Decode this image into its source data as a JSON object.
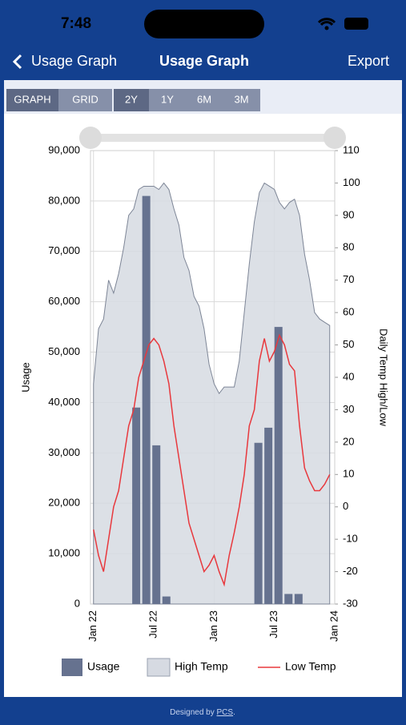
{
  "status_bar": {
    "time": "7:48"
  },
  "nav": {
    "back": "Usage Graph",
    "title": "Usage Graph",
    "action": "Export"
  },
  "toolbar": {
    "views": [
      "GRAPH",
      "GRID"
    ],
    "ranges": [
      "2Y",
      "1Y",
      "6M",
      "3M"
    ]
  },
  "chart_data": {
    "type": "combo",
    "xlabel": null,
    "ylabel": "Usage",
    "y2label": "Daily Temp High/Low",
    "xlim": [
      -0.3,
      24
    ],
    "xticks": [
      {
        "value": 0,
        "label": "Jan 22"
      },
      {
        "value": 6,
        "label": "Jul 22"
      },
      {
        "value": 12,
        "label": "Jan 23"
      },
      {
        "value": 18,
        "label": "Jul 23"
      },
      {
        "value": 24,
        "label": "Jan 24"
      }
    ],
    "ylim": [
      0,
      90000
    ],
    "yticks": [
      0,
      {
        "value": 10000,
        "label": "10,000"
      },
      {
        "value": 20000,
        "label": "20,000"
      },
      {
        "value": 30000,
        "label": "30,000"
      },
      {
        "value": 40000,
        "label": "40,000"
      },
      {
        "value": 50000,
        "label": "50,000"
      },
      {
        "value": 60000,
        "label": "60,000"
      },
      {
        "value": 70000,
        "label": "70,000"
      },
      {
        "value": 80000,
        "label": "80,000"
      },
      {
        "value": 90000,
        "label": "90,000"
      }
    ],
    "y2lim": [
      -30,
      110
    ],
    "y2ticks": [
      -30,
      -20,
      -10,
      0,
      10,
      20,
      30,
      40,
      50,
      60,
      70,
      80,
      90,
      100,
      110
    ],
    "grid": true,
    "series": [
      {
        "name": "Usage",
        "type": "bar",
        "color": "#66728f",
        "x": [
          4.25,
          5.25,
          6.25,
          7.25,
          16.4,
          17.4,
          18.4,
          19.4,
          20.4
        ],
        "values": [
          39000,
          81000,
          31500,
          1500,
          32000,
          35000,
          55000,
          2000,
          2000
        ]
      },
      {
        "name": "High Temp",
        "type": "area",
        "axis": "y2",
        "color": "#d6dae2",
        "x": [
          0,
          0.5,
          1,
          1.5,
          2,
          2.5,
          3,
          3.5,
          4,
          4.5,
          5,
          5.5,
          6,
          6.5,
          7,
          7.5,
          8,
          8.5,
          9,
          9.5,
          10,
          10.5,
          11,
          11.5,
          12,
          12.5,
          13,
          13.5,
          14,
          14.5,
          15,
          15.5,
          16,
          16.5,
          17,
          17.5,
          18,
          18.5,
          19,
          19.5,
          20,
          20.5,
          21,
          21.5,
          22,
          22.5,
          23,
          23.5
        ],
        "values": [
          38,
          55,
          58,
          70,
          66,
          72,
          80,
          90,
          92,
          98,
          99,
          99,
          99,
          98,
          100,
          98,
          92,
          87,
          77,
          73,
          65,
          62,
          55,
          44,
          38,
          35,
          37,
          37,
          37,
          45,
          60,
          75,
          88,
          97,
          100,
          99,
          98,
          94,
          92,
          94,
          95,
          90,
          78,
          70,
          60,
          58,
          57,
          56
        ]
      },
      {
        "name": "Low Temp",
        "type": "line",
        "axis": "y2",
        "color": "#e8383d",
        "x": [
          0,
          0.5,
          1,
          1.5,
          2,
          2.5,
          3,
          3.5,
          4,
          4.5,
          5,
          5.5,
          6,
          6.5,
          7,
          7.5,
          8,
          8.5,
          9,
          9.5,
          10,
          10.5,
          11,
          11.5,
          12,
          12.5,
          13,
          13.5,
          14,
          14.5,
          15,
          15.5,
          16,
          16.5,
          17,
          17.5,
          18,
          18.5,
          19,
          19.5,
          20,
          20.5,
          21,
          21.5,
          22,
          22.5,
          23,
          23.5
        ],
        "values": [
          -7,
          -15,
          -20,
          -10,
          0,
          5,
          15,
          25,
          30,
          40,
          45,
          50,
          52,
          50,
          45,
          38,
          25,
          15,
          5,
          -5,
          -10,
          -15,
          -20,
          -18,
          -15,
          -20,
          -24,
          -15,
          -8,
          0,
          10,
          25,
          30,
          45,
          52,
          45,
          48,
          53,
          50,
          44,
          42,
          25,
          12,
          8,
          5,
          5,
          7,
          10
        ]
      }
    ]
  },
  "footer": {
    "text": "Designed by",
    "link": "PCS",
    "suffix": "."
  }
}
